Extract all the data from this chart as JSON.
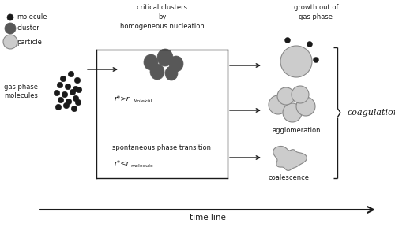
{
  "bg_color": "#ffffff",
  "molecule_color": "#1a1a1a",
  "cluster_color": "#585858",
  "particle_color": "#cccccc",
  "particle_edge_color": "#888888",
  "text_color": "#1a1a1a",
  "fig_width": 5.0,
  "fig_height": 2.88,
  "dpi": 100,
  "xlim": [
    0,
    500
  ],
  "ylim": [
    0,
    288
  ]
}
